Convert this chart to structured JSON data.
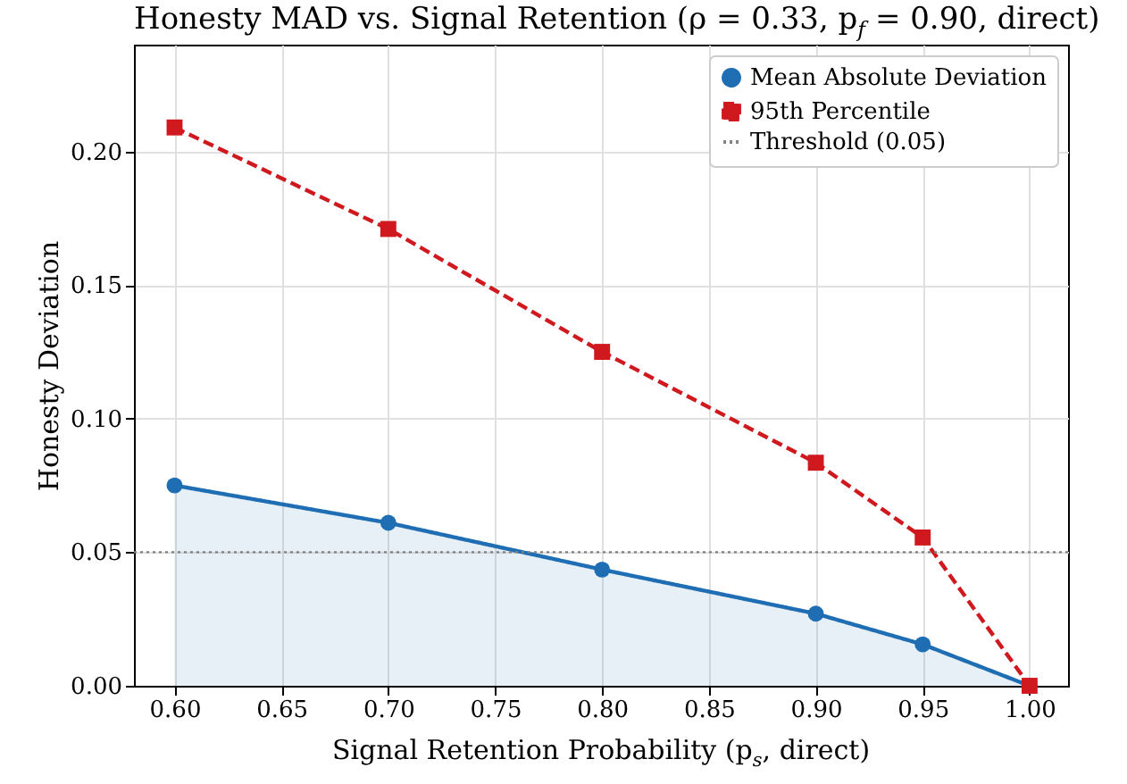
{
  "chart_data": {
    "type": "line",
    "title": "Honesty MAD vs. Signal Retention (ρ = 0.33, p$_{f}$ = 0.90, direct)",
    "xlabel": "Signal Retention Probability (p$_{s}$, direct)",
    "ylabel": "Honesty Deviation",
    "x": [
      0.6,
      0.7,
      0.8,
      0.9,
      0.95,
      1.0
    ],
    "series": [
      {
        "name": "Mean Absolute Deviation",
        "type": "area",
        "color": "#1f6eb4",
        "marker": "circle",
        "line_style": "solid",
        "values": [
          0.075,
          0.061,
          0.0435,
          0.027,
          0.0155,
          0.0
        ]
      },
      {
        "name": "95th Percentile",
        "color": "#d0191e",
        "marker": "square",
        "line_style": "dashed",
        "values": [
          0.209,
          0.171,
          0.125,
          0.0835,
          0.0555,
          0.0
        ]
      }
    ],
    "ref_lines": [
      {
        "axis": "y",
        "value": 0.05,
        "label": "Threshold (0.05)",
        "color": "#808080",
        "line_style": "dotted"
      }
    ],
    "xlim": [
      0.581,
      1.018
    ],
    "ylim": [
      0,
      0.24
    ],
    "xticks": [
      {
        "value": 0.6,
        "label": "0.60"
      },
      {
        "value": 0.65,
        "label": "0.65"
      },
      {
        "value": 0.7,
        "label": "0.70"
      },
      {
        "value": 0.75,
        "label": "0.75"
      },
      {
        "value": 0.8,
        "label": "0.80"
      },
      {
        "value": 0.85,
        "label": "0.85"
      },
      {
        "value": 0.9,
        "label": "0.90"
      },
      {
        "value": 0.95,
        "label": "0.95"
      },
      {
        "value": 1.0,
        "label": "1.00"
      }
    ],
    "yticks": [
      {
        "value": 0,
        "label": "0.00"
      },
      {
        "value": 0.05,
        "label": "0.05"
      },
      {
        "value": 0.1,
        "label": "0.10"
      },
      {
        "value": 0.15,
        "label": "0.15"
      },
      {
        "value": 0.2,
        "label": "0.20"
      }
    ],
    "grid": true,
    "legend": "top right"
  }
}
